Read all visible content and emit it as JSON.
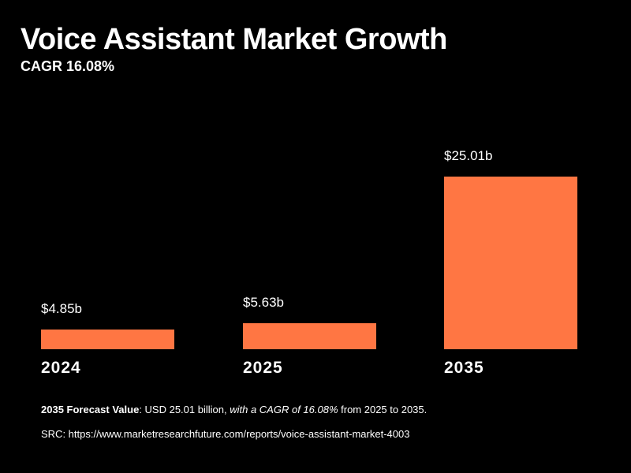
{
  "chart_data": {
    "type": "bar",
    "title": "Voice Assistant Market Growth",
    "subtitle": "CAGR 16.08%",
    "categories": [
      "2024",
      "2025",
      "2035"
    ],
    "values": [
      4.85,
      5.63,
      25.01
    ],
    "data_labels": [
      "$4.85b",
      "$5.63b",
      "$25.01b"
    ],
    "unit": "USD billion",
    "bar_color": "#FF7643",
    "background": "#000000",
    "grid": false,
    "legend": "none"
  },
  "footer": {
    "note_bold": "2035 Forecast Value",
    "note_plain": ": USD 25.01 billion, ",
    "note_italic": "with a CAGR of 16.08%",
    "note_end": " from 2025 to 2035.",
    "source": "SRC: https://www.marketresearchfuture.com/reports/voice-assistant-market-4003"
  }
}
